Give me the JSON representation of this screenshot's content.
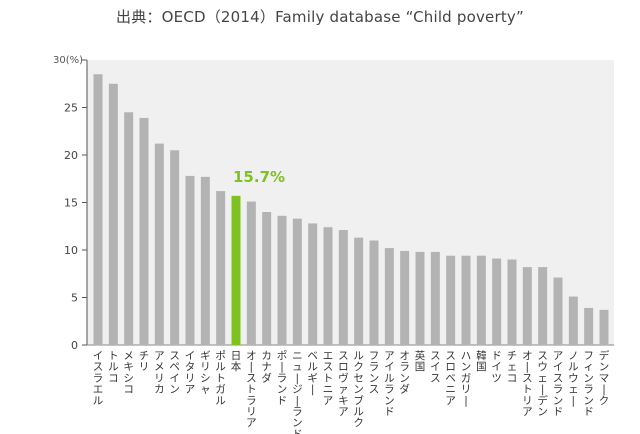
{
  "chart_data": {
    "type": "bar",
    "title": "出典：OECD（2014）Family database “Child poverty”",
    "ylabel": "",
    "y_unit_label": "30(%)",
    "ylim": [
      0,
      30
    ],
    "y_ticks": [
      {
        "value": 0,
        "label": "0"
      },
      {
        "value": 5,
        "label": "5"
      },
      {
        "value": 10,
        "label": "10"
      },
      {
        "value": 15,
        "label": "15"
      },
      {
        "value": 20,
        "label": "20"
      },
      {
        "value": 25,
        "label": "25"
      }
    ],
    "grid": false,
    "legend": "none",
    "bar_color": "#b3b3b3",
    "highlight_color": "#7dc21f",
    "plot_background": "#f0f0f0",
    "highlight_index": 9,
    "highlight_label": "15.7%",
    "categories": [
      "イスラエル",
      "トルコ",
      "メキシコ",
      "チリ",
      "アメリカ",
      "スペイン",
      "イタリア",
      "ギリシャ",
      "ポルトガル",
      "日本",
      "オーストラリア",
      "カナダ",
      "ポーランド",
      "ニュージーランド",
      "ベルギー",
      "エストニア",
      "スロヴァキア",
      "ルクセンブルク",
      "フランス",
      "アイルランド",
      "オランダ",
      "英国",
      "スイス",
      "スロベニア",
      "ハンガリー",
      "韓国",
      "ドイツ",
      "チェコ",
      "オーストリア",
      "スウェーデン",
      "アイスランド",
      "ノルウェー",
      "フィンランド",
      "デンマーク"
    ],
    "values": [
      28.5,
      27.5,
      24.5,
      23.9,
      21.2,
      20.5,
      17.8,
      17.7,
      16.2,
      15.7,
      15.1,
      14.0,
      13.6,
      13.3,
      12.8,
      12.4,
      12.1,
      11.3,
      11.0,
      10.2,
      9.9,
      9.8,
      9.8,
      9.4,
      9.4,
      9.4,
      9.1,
      9.0,
      8.2,
      8.2,
      7.1,
      5.1,
      3.9,
      3.7
    ]
  }
}
